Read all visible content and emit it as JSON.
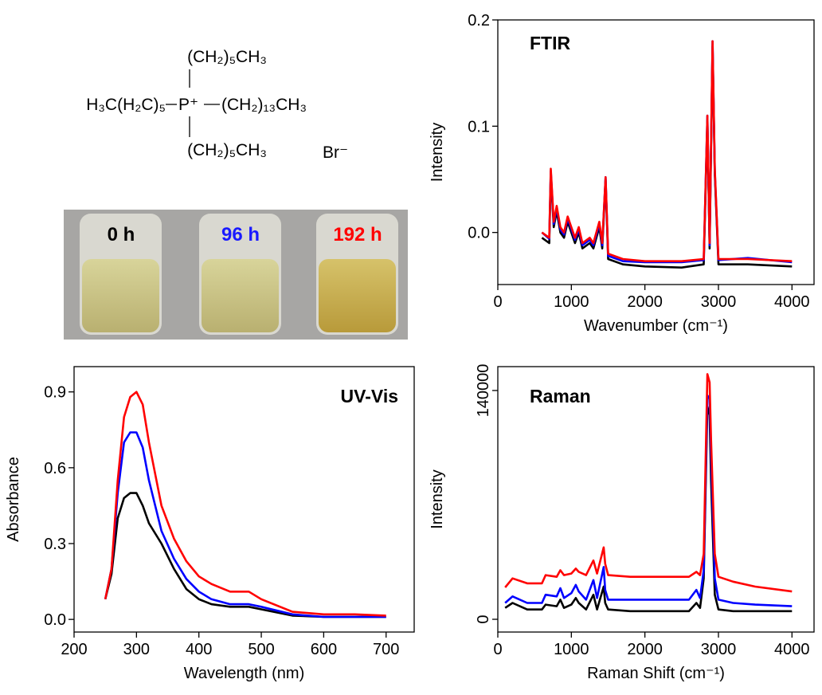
{
  "structure": {
    "top": "(CH₂)₅CH₃",
    "left": "H₃C(H₂C)₅",
    "center": "P⁺",
    "right": "(CH₂)₁₃CH₃",
    "bottom": "(CH₂)₅CH₃",
    "counterion": "Br⁻"
  },
  "photo": {
    "labels": [
      {
        "text": "0 h",
        "color": "#000000"
      },
      {
        "text": "96 h",
        "color": "#1a1aff"
      },
      {
        "text": "192 h",
        "color": "#ff0000"
      }
    ]
  },
  "chart_data": [
    {
      "type": "line",
      "title": "FTIR",
      "xlabel": "Wavenumber (cm⁻¹)",
      "ylabel": "Intensity",
      "xlim": [
        0,
        4300
      ],
      "ylim": [
        -0.049,
        0.2
      ],
      "xticks": [
        0,
        1000,
        2000,
        3000,
        4000
      ],
      "yticks": [
        {
          "value": 0,
          "label": "0.0"
        },
        0.1,
        0.2
      ],
      "x": [
        600,
        700,
        720,
        760,
        800,
        850,
        900,
        950,
        1000,
        1050,
        1100,
        1150,
        1250,
        1300,
        1380,
        1420,
        1465,
        1500,
        1700,
        2000,
        2500,
        2800,
        2850,
        2880,
        2920,
        2950,
        3000,
        3400,
        4000
      ],
      "series": [
        {
          "color": "#000000",
          "values": [
            -0.005,
            -0.01,
            0.055,
            0.005,
            0.02,
            0.0,
            -0.005,
            0.01,
            0.0,
            -0.01,
            0.0,
            -0.015,
            -0.01,
            -0.015,
            0.005,
            -0.015,
            0.05,
            -0.025,
            -0.03,
            -0.032,
            -0.033,
            -0.03,
            0.105,
            -0.015,
            0.175,
            0.055,
            -0.03,
            -0.03,
            -0.032
          ]
        },
        {
          "color": "#0000ff",
          "values": [
            0.0,
            -0.006,
            0.058,
            0.008,
            0.023,
            0.003,
            -0.002,
            0.013,
            0.003,
            -0.007,
            0.003,
            -0.012,
            -0.007,
            -0.012,
            0.008,
            -0.012,
            0.052,
            -0.022,
            -0.027,
            -0.028,
            -0.028,
            -0.026,
            0.11,
            -0.012,
            0.18,
            0.058,
            -0.026,
            -0.024,
            -0.028
          ]
        },
        {
          "color": "#ff0000",
          "values": [
            0.0,
            -0.005,
            0.06,
            0.01,
            0.025,
            0.005,
            0.0,
            0.015,
            0.005,
            -0.005,
            0.005,
            -0.01,
            -0.005,
            -0.01,
            0.01,
            -0.01,
            0.052,
            -0.02,
            -0.025,
            -0.027,
            -0.027,
            -0.025,
            0.11,
            -0.01,
            0.18,
            0.06,
            -0.025,
            -0.025,
            -0.027
          ]
        }
      ]
    },
    {
      "type": "line",
      "title": "UV-Vis",
      "xlabel": "Wavelength (nm)",
      "ylabel": "Absorbance",
      "xlim": [
        200,
        745
      ],
      "ylim": [
        -0.05,
        1.0
      ],
      "xticks": [
        200,
        300,
        400,
        500,
        600,
        700
      ],
      "yticks": [
        {
          "value": 0,
          "label": "0.0"
        },
        0.3,
        0.6,
        0.9
      ],
      "x": [
        250,
        260,
        270,
        280,
        290,
        300,
        310,
        320,
        340,
        360,
        380,
        400,
        420,
        450,
        470,
        480,
        500,
        550,
        600,
        650,
        700
      ],
      "series": [
        {
          "color": "#000000",
          "values": [
            0.08,
            0.18,
            0.4,
            0.48,
            0.5,
            0.5,
            0.45,
            0.38,
            0.3,
            0.2,
            0.12,
            0.08,
            0.06,
            0.05,
            0.05,
            0.05,
            0.04,
            0.015,
            0.01,
            0.01,
            0.01
          ]
        },
        {
          "color": "#0000ff",
          "values": [
            0.08,
            0.2,
            0.5,
            0.7,
            0.74,
            0.74,
            0.68,
            0.55,
            0.35,
            0.24,
            0.16,
            0.11,
            0.08,
            0.06,
            0.06,
            0.06,
            0.05,
            0.02,
            0.01,
            0.01,
            0.01
          ]
        },
        {
          "color": "#ff0000",
          "values": [
            0.08,
            0.2,
            0.55,
            0.8,
            0.88,
            0.9,
            0.85,
            0.7,
            0.45,
            0.32,
            0.23,
            0.17,
            0.14,
            0.11,
            0.11,
            0.11,
            0.08,
            0.03,
            0.02,
            0.02,
            0.015
          ]
        }
      ]
    },
    {
      "type": "line",
      "title": "Raman",
      "xlabel": "Raman Shift (cm⁻¹)",
      "ylabel": "Intensity",
      "xlim": [
        0,
        4300
      ],
      "ylim": [
        -7800,
        154600
      ],
      "xticks": [
        0,
        1000,
        2000,
        3000,
        4000
      ],
      "yticks": [
        0,
        140000
      ],
      "x": [
        100,
        200,
        400,
        600,
        650,
        800,
        850,
        900,
        1000,
        1060,
        1100,
        1200,
        1300,
        1350,
        1440,
        1460,
        1500,
        1800,
        2200,
        2600,
        2700,
        2750,
        2800,
        2850,
        2880,
        2900,
        2950,
        3000,
        3200,
        3500,
        4000
      ],
      "series": [
        {
          "color": "#000000",
          "values": [
            7000,
            10000,
            6000,
            6000,
            9000,
            8000,
            12000,
            7000,
            9000,
            13000,
            10000,
            6000,
            15000,
            6000,
            20000,
            10000,
            6000,
            5000,
            5000,
            5000,
            10000,
            7000,
            25000,
            130000,
            125000,
            85000,
            15000,
            6000,
            5000,
            5000,
            5000
          ]
        },
        {
          "color": "#0000ff",
          "values": [
            10000,
            14000,
            10000,
            10000,
            15000,
            14000,
            19000,
            13000,
            16000,
            21000,
            17000,
            12000,
            24000,
            13000,
            32000,
            18000,
            12000,
            12000,
            12000,
            12000,
            18000,
            13000,
            30000,
            137000,
            135000,
            100000,
            25000,
            12000,
            10000,
            9000,
            8000
          ]
        },
        {
          "color": "#ff0000",
          "values": [
            19500,
            25000,
            22000,
            22000,
            27000,
            26000,
            30000,
            27000,
            28000,
            31000,
            29000,
            27000,
            36000,
            28000,
            44000,
            34000,
            27000,
            26000,
            26000,
            26000,
            29000,
            27000,
            40000,
            150000,
            145000,
            110000,
            40000,
            26000,
            23000,
            20000,
            17000
          ]
        }
      ]
    }
  ]
}
